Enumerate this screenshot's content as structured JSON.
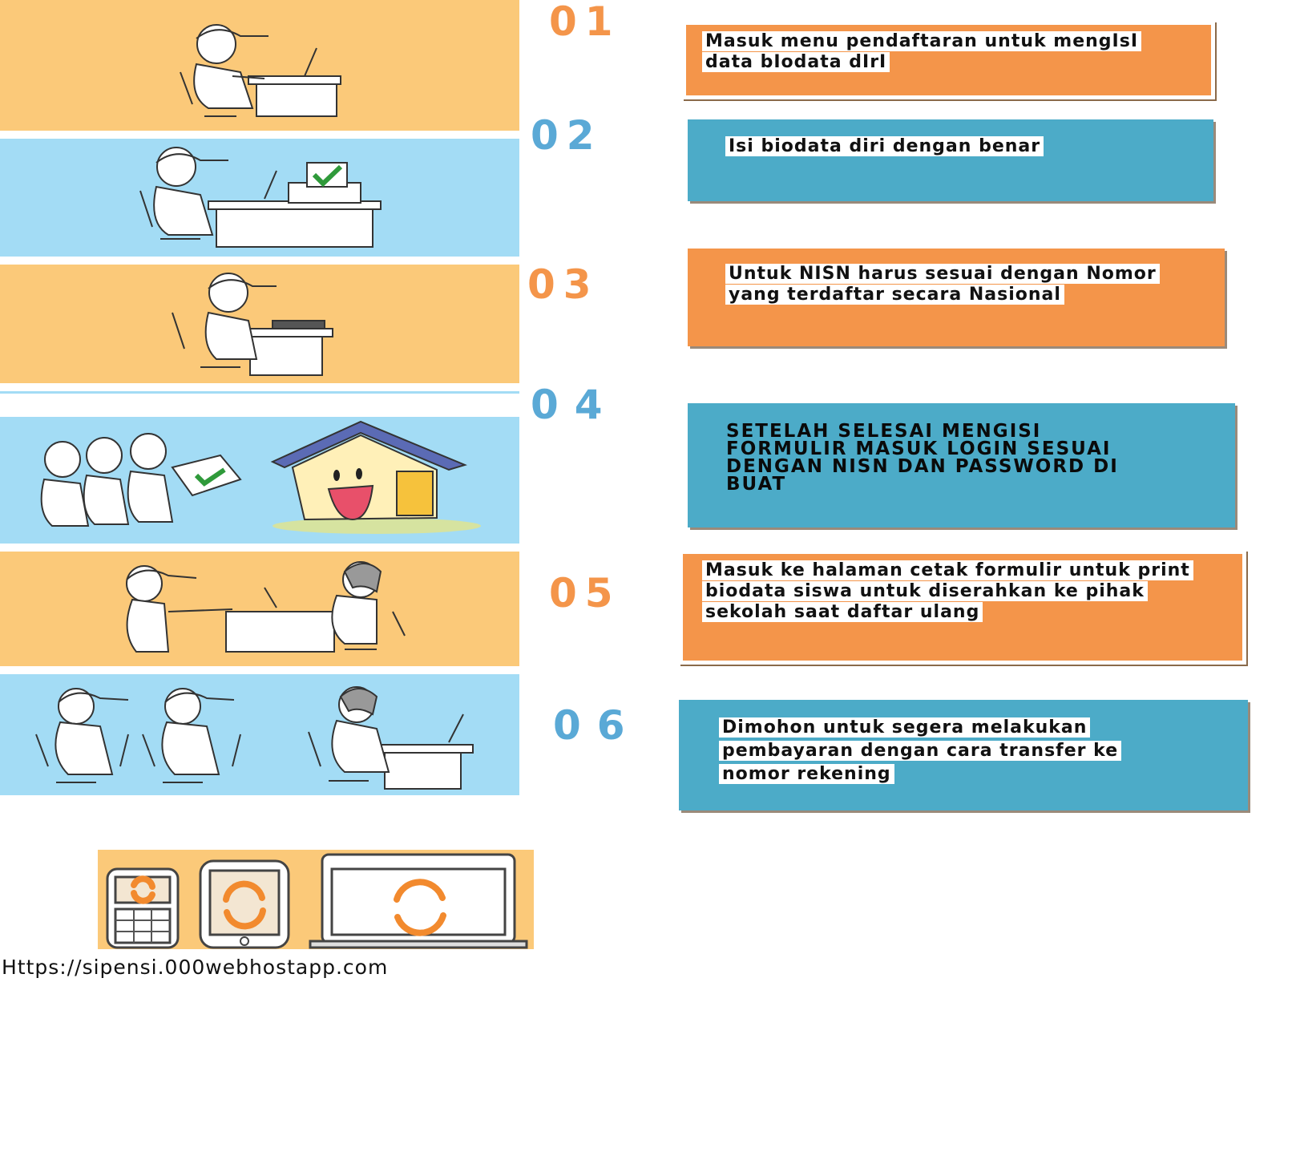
{
  "steps": [
    {
      "number": "01",
      "text": "Masuk menu pendaftaran untuk mengIsI data bIodata dIrI"
    },
    {
      "number": "02",
      "text": "Isi biodata diri dengan benar"
    },
    {
      "number": "03",
      "text": "Untuk NISN harus sesuai dengan Nomor yang terdaftar secara Nasional"
    },
    {
      "number": "04",
      "text": "SETELAH SELESAI MENGISI FORMULIR MASUK LOGIN SESUAI DENGAN NISN DAN PASSWORD DI BUAT"
    },
    {
      "number": "05",
      "text": "Masuk ke halaman cetak formulir untuk print biodata siswa untuk diserahkan ke pihak sekolah saat daftar ulang"
    },
    {
      "number": "06",
      "text": "Dimohon untuk segera melakukan pembayaran dengan cara transfer ke nomor rekening"
    }
  ],
  "footer": {
    "url": "Https://sipensi.000webhostapp.com"
  },
  "colors": {
    "orange": "#f4954a",
    "blue": "#4cabc8",
    "panel_orange": "#fbc979",
    "panel_blue": "#a3dcf5"
  }
}
